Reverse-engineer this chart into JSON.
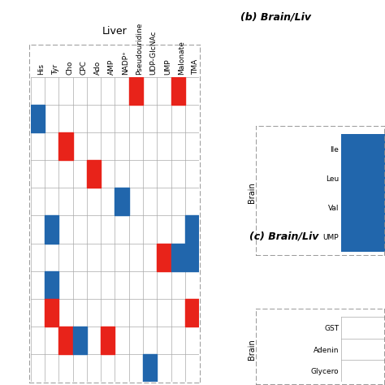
{
  "x_labels": [
    "His",
    "Tyr",
    "Cho",
    "CPC",
    "Ado",
    "AMP",
    "NADP⁺",
    "Pseudouridine",
    "UDP-GlcNAc",
    "UMP",
    "Malonate",
    "TMA"
  ],
  "n_rows": 11,
  "n_cols": 12,
  "cells": [
    {
      "row": 0,
      "col": 7,
      "color": "red"
    },
    {
      "row": 0,
      "col": 10,
      "color": "red"
    },
    {
      "row": 1,
      "col": 0,
      "color": "blue"
    },
    {
      "row": 2,
      "col": 2,
      "color": "red"
    },
    {
      "row": 3,
      "col": 4,
      "color": "red"
    },
    {
      "row": 4,
      "col": 6,
      "color": "blue"
    },
    {
      "row": 5,
      "col": 1,
      "color": "blue"
    },
    {
      "row": 6,
      "col": 9,
      "color": "red"
    },
    {
      "row": 6,
      "col": 10,
      "color": "blue"
    },
    {
      "row": 7,
      "col": 1,
      "color": "blue"
    },
    {
      "row": 8,
      "col": 1,
      "color": "red"
    },
    {
      "row": 8,
      "col": 11,
      "color": "red"
    },
    {
      "row": 9,
      "col": 2,
      "color": "red"
    },
    {
      "row": 9,
      "col": 3,
      "color": "blue"
    },
    {
      "row": 9,
      "col": 5,
      "color": "red"
    },
    {
      "row": 10,
      "col": 8,
      "color": "blue"
    },
    {
      "row": 5,
      "col": 11,
      "color": "blue"
    },
    {
      "row": 6,
      "col": 11,
      "color": "blue"
    }
  ],
  "red_color": "#e8231a",
  "blue_color": "#2166ac",
  "grid_color": "#aaaaaa",
  "dashed_border_color": "#888888",
  "liver_label": "Liver",
  "panel_b_title": "(b) Brain/Liv",
  "panel_c_title": "(c) Brain/Liv",
  "panel_b_ylabels": [
    "Ile",
    "Leu",
    "Val",
    "UMP"
  ],
  "panel_c_ylabels": [
    "GST",
    "Adenin",
    "Glycero"
  ],
  "brain_label": "Brain"
}
